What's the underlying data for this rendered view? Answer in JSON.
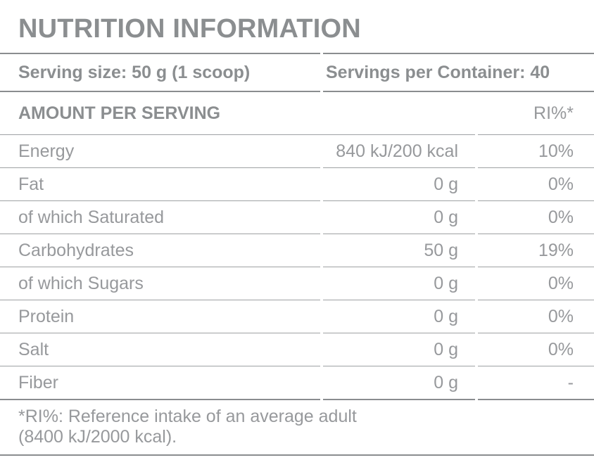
{
  "title": "NUTRITION INFORMATION",
  "serving": {
    "size_label": "Serving size: 50 g (1 scoop)",
    "per_container_label": "Servings per Container: 40"
  },
  "table": {
    "amount_header": "AMOUNT PER SERVING",
    "ri_header": "RI%*",
    "rows": [
      {
        "label": "Energy",
        "amount": "840 kJ/200 kcal",
        "ri": "10%"
      },
      {
        "label": "Fat",
        "amount": "0 g",
        "ri": "0%"
      },
      {
        "label": "of which Saturated",
        "amount": "0 g",
        "ri": "0%"
      },
      {
        "label": "Carbohydrates",
        "amount": "50 g",
        "ri": "19%"
      },
      {
        "label": "of which Sugars",
        "amount": "0 g",
        "ri": "0%"
      },
      {
        "label": "Protein",
        "amount": "0 g",
        "ri": "0%"
      },
      {
        "label": "Salt",
        "amount": "0 g",
        "ri": "0%"
      },
      {
        "label": "Fiber",
        "amount": "0 g",
        "ri": "-"
      }
    ]
  },
  "footnote": {
    "line1": "*RI%: Reference intake of an average adult",
    "line2": "(8400 kJ/2000 kcal)."
  },
  "colors": {
    "text_bold": "#8b8e90",
    "text_regular": "#97999c",
    "rule_thick": "#8a8d8f",
    "rule_thin": "#9ea1a3"
  }
}
